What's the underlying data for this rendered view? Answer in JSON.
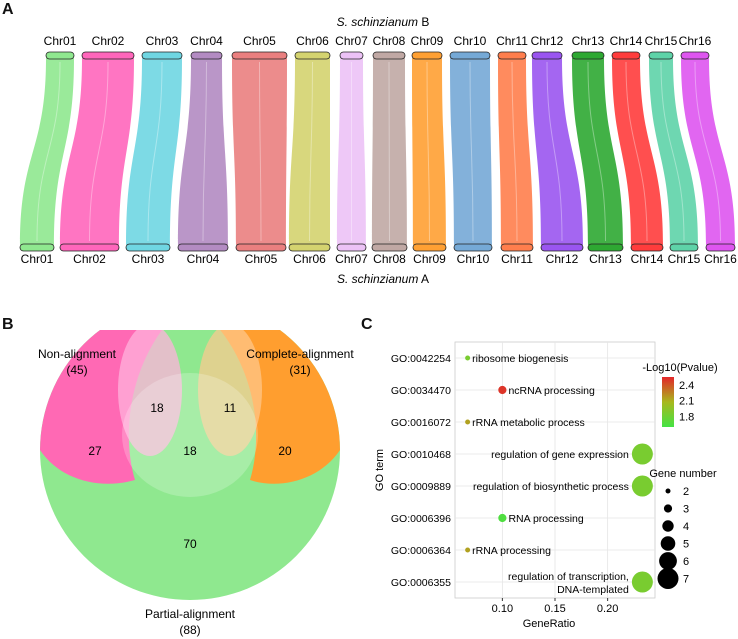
{
  "panels": {
    "a": "A",
    "b": "B",
    "c": "C"
  },
  "synteny": {
    "top_genome": "S. schinzianum B",
    "bottom_genome": "S. schinzianum A",
    "top_genome_species": "S. schinzianum",
    "top_genome_suffix": "B",
    "bottom_genome_species": "S. schinzianum",
    "bottom_genome_suffix": "A",
    "chromosomes": [
      {
        "name": "Chr01",
        "color": "#8fe88f"
      },
      {
        "name": "Chr02",
        "color": "#ff66bb"
      },
      {
        "name": "Chr03",
        "color": "#6fd6e2"
      },
      {
        "name": "Chr04",
        "color": "#b38bc2"
      },
      {
        "name": "Chr05",
        "color": "#ea7f7f"
      },
      {
        "name": "Chr06",
        "color": "#d4d36f"
      },
      {
        "name": "Chr07",
        "color": "#ecc2f6"
      },
      {
        "name": "Chr08",
        "color": "#c0a8a4"
      },
      {
        "name": "Chr09",
        "color": "#ffa033"
      },
      {
        "name": "Chr10",
        "color": "#75a9d6"
      },
      {
        "name": "Chr11",
        "color": "#ff7e4d"
      },
      {
        "name": "Chr12",
        "color": "#9a55f0"
      },
      {
        "name": "Chr13",
        "color": "#2ea832"
      },
      {
        "name": "Chr14",
        "color": "#ff3c3c"
      },
      {
        "name": "Chr15",
        "color": "#5ed3a8"
      },
      {
        "name": "Chr16",
        "color": "#de55ef"
      }
    ]
  },
  "venn": {
    "sets": [
      {
        "name": "Non-alignment",
        "total": "(45)",
        "color": "#ff4fa3"
      },
      {
        "name": "Complete-alignment",
        "total": "(31)",
        "color": "#ff9a2e"
      },
      {
        "name": "Partial-alignment",
        "total": "(88)",
        "color": "#8fe88f"
      }
    ],
    "regions": {
      "non_only": "27",
      "complete_only": "20",
      "partial_only": "70",
      "non_complete": "18",
      "complete_partial": "11",
      "all_three": "18"
    }
  },
  "chart_data": {
    "type": "scatter",
    "title": "",
    "xlabel": "GeneRatio",
    "ylabel": "GO term",
    "xlim": [
      0.055,
      0.245
    ],
    "x_ticks": [
      "0.10",
      "0.15",
      "0.20"
    ],
    "x_tick_values": [
      0.1,
      0.15,
      0.2
    ],
    "grid": true,
    "legend_color_title": "-Log10(Pvalue)",
    "legend_color_ticks": [
      "2.4",
      "2.1",
      "1.8"
    ],
    "legend_color_values": [
      2.4,
      2.1,
      1.8
    ],
    "legend_color_range": [
      1.6,
      2.55
    ],
    "legend_color_low": "#44e344",
    "legend_color_high": "#e3262a",
    "legend_size_title": "Gene number",
    "legend_size_values": [
      "2",
      "3",
      "4",
      "5",
      "6",
      "7"
    ],
    "points": [
      {
        "go_id": "GO:0042254",
        "term": "ribosome biogenesis",
        "x": 0.067,
        "genes": 2,
        "pvalue_log": 1.85
      },
      {
        "go_id": "GO:0034470",
        "term": "ncRNA processing",
        "x": 0.1,
        "genes": 3,
        "pvalue_log": 2.5
      },
      {
        "go_id": "GO:0016072",
        "term": "rRNA metabolic process",
        "x": 0.067,
        "genes": 2,
        "pvalue_log": 2.15
      },
      {
        "go_id": "GO:0010468",
        "term": "regulation of gene expression",
        "x": 0.233,
        "genes": 7,
        "pvalue_log": 1.85
      },
      {
        "go_id": "GO:0009889",
        "term": "regulation of biosynthetic process",
        "x": 0.233,
        "genes": 7,
        "pvalue_log": 1.85
      },
      {
        "go_id": "GO:0006396",
        "term": "RNA processing",
        "x": 0.1,
        "genes": 3,
        "pvalue_log": 1.65
      },
      {
        "go_id": "GO:0006364",
        "term": "rRNA processing",
        "x": 0.067,
        "genes": 2,
        "pvalue_log": 2.15
      },
      {
        "go_id": "GO:0006355",
        "term": "regulation of transcription, DNA-templated",
        "x": 0.233,
        "genes": 7,
        "pvalue_log": 1.85
      }
    ]
  }
}
